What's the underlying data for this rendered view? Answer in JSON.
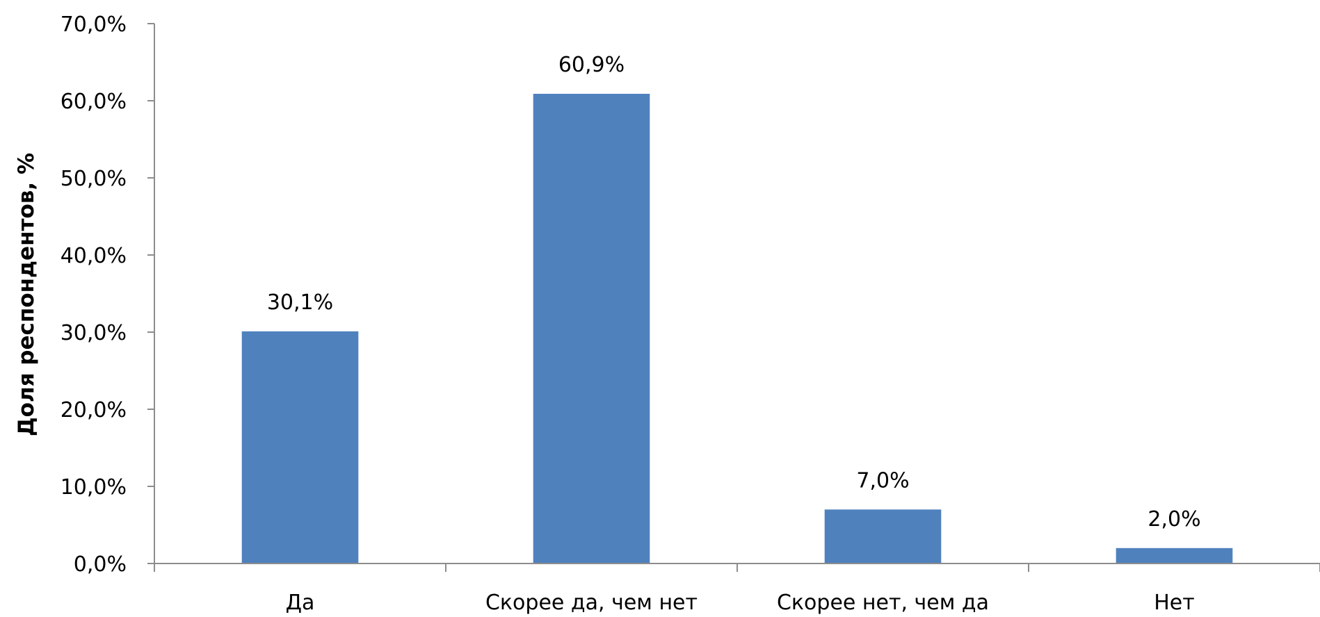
{
  "chart_data": {
    "type": "bar",
    "categories": [
      "Да",
      "Скорее да, чем нет",
      "Скорее нет, чем да",
      "Нет"
    ],
    "values": [
      30.1,
      60.9,
      7.0,
      2.0
    ],
    "data_labels": [
      "30,1%",
      "60,9%",
      "7,0%",
      "2,0%"
    ],
    "ylabel": "Доля респондентов, %",
    "ylim": [
      0,
      70
    ],
    "yticks": [
      0,
      10,
      20,
      30,
      40,
      50,
      60,
      70
    ],
    "ytick_labels": [
      "0,0%",
      "10,0%",
      "20,0%",
      "30,0%",
      "40,0%",
      "50,0%",
      "60,0%",
      "70,0%"
    ],
    "bar_color": "#4F81BD",
    "grid": false,
    "legend": "none"
  }
}
